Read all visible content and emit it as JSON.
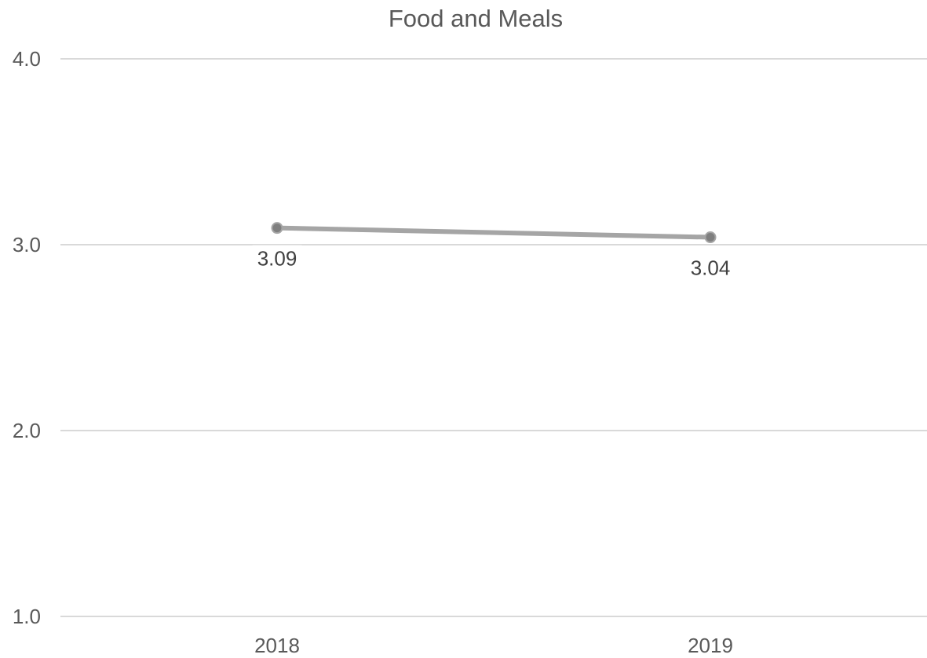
{
  "chart_data": {
    "type": "line",
    "title": "Food and Meals",
    "xlabel": "",
    "ylabel": "",
    "categories": [
      "2018",
      "2019"
    ],
    "series": [
      {
        "values": [
          3.09,
          3.04
        ],
        "data_labels": [
          "3.09",
          "3.04"
        ],
        "color": "#a5a5a5"
      }
    ],
    "ylim": [
      1.0,
      4.0
    ],
    "y_ticks": [
      1.0,
      2.0,
      3.0,
      4.0
    ],
    "y_tick_labels": [
      "1.0",
      "2.0",
      "3.0",
      "4.0"
    ],
    "grid": true,
    "legend": "none"
  },
  "colors": {
    "gridline": "#d9d9d9",
    "series_line": "#a5a5a5",
    "marker": "#7f7f7f",
    "text": "#595959"
  }
}
